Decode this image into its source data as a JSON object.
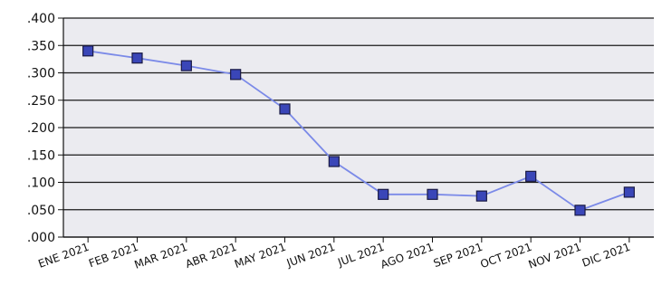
{
  "chart_data": {
    "type": "line",
    "title": "",
    "xlabel": "",
    "ylabel": "",
    "categories": [
      "ENE 2021",
      "FEB 2021",
      "MAR 2021",
      "ABR 2021",
      "MAY 2021",
      "JUN 2021",
      "JUL 2021",
      "AGO 2021",
      "SEP 2021",
      "OCT 2021",
      "NOV 2021",
      "DIC 2021"
    ],
    "series": [
      {
        "values": [
          0.34,
          0.327,
          0.313,
          0.297,
          0.234,
          0.138,
          0.078,
          0.078,
          0.075,
          0.111,
          0.049,
          0.082
        ]
      }
    ],
    "ylim": [
      0,
      0.4
    ],
    "yticks": [
      0,
      0.05,
      0.1,
      0.15,
      0.2,
      0.25,
      0.3,
      0.35,
      0.4
    ],
    "ytick_labels": [
      ".000",
      ".050",
      ".100",
      ".150",
      ".200",
      ".250",
      ".300",
      ".350",
      ".400"
    ],
    "grid": true,
    "legend": "none",
    "colors": {
      "plot_background": "#EBEBF0",
      "grid": "#1A1A1A",
      "line": "#7B8AE8",
      "marker_fill": "#3A46B8",
      "marker_stroke": "#1A1A44",
      "axis": "#111111"
    }
  }
}
